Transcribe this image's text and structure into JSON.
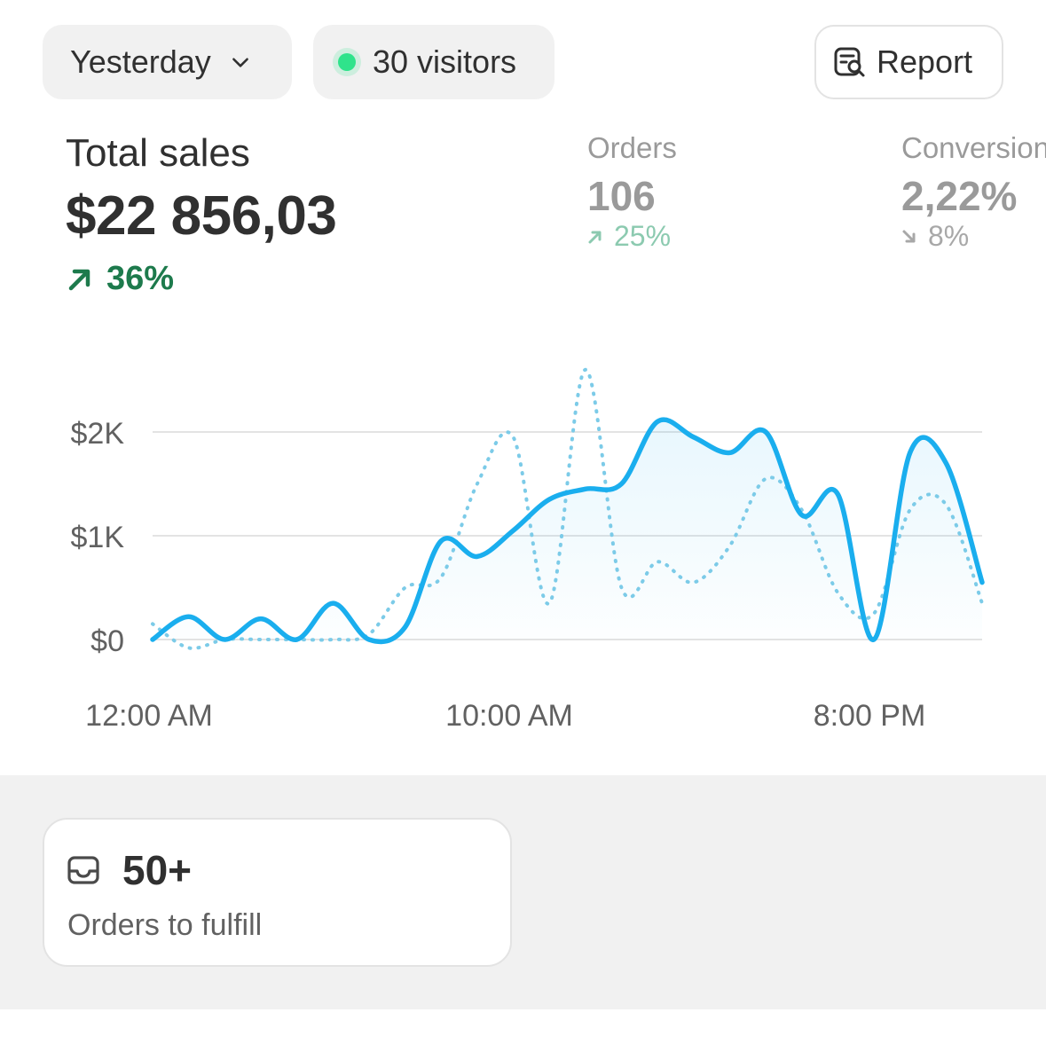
{
  "filters": {
    "date_label": "Yesterday",
    "visitors_label": "30 visitors",
    "report_label": "Report"
  },
  "metrics": {
    "total_sales": {
      "label": "Total sales",
      "value": "$22 856,03",
      "delta": "36%",
      "trend": "up"
    },
    "orders": {
      "label": "Orders",
      "value": "106",
      "delta": "25%",
      "trend": "up"
    },
    "conversion": {
      "label": "Conversion",
      "value": "2,22%",
      "delta": "8%",
      "trend": "down"
    }
  },
  "colors": {
    "primary_line": "#1aaeee",
    "comparison_line": "#7ccbe8",
    "positive": "#1d7a4c",
    "live_dot": "#2fe38b"
  },
  "chart_data": {
    "type": "line",
    "x_tick_labels": [
      "12:00 AM",
      "10:00 AM",
      "8:00 PM"
    ],
    "y_tick_labels": [
      "$0",
      "$1K",
      "$2K"
    ],
    "ylim": [
      0,
      2000
    ],
    "grid": true,
    "series": [
      {
        "style": "solid",
        "values": [
          0,
          220,
          0,
          200,
          0,
          350,
          0,
          120,
          950,
          800,
          1050,
          1350,
          1450,
          1500,
          2100,
          1950,
          1800,
          2000,
          1200,
          1400,
          0,
          1800,
          1700,
          550
        ]
      },
      {
        "style": "dotted",
        "values": [
          150,
          -80,
          0,
          0,
          0,
          0,
          50,
          500,
          600,
          1500,
          1950,
          350,
          2600,
          500,
          750,
          550,
          900,
          1550,
          1250,
          450,
          250,
          1250,
          1300,
          350
        ]
      }
    ]
  },
  "fulfill_card": {
    "count": "50+",
    "label": "Orders to fulfill"
  }
}
